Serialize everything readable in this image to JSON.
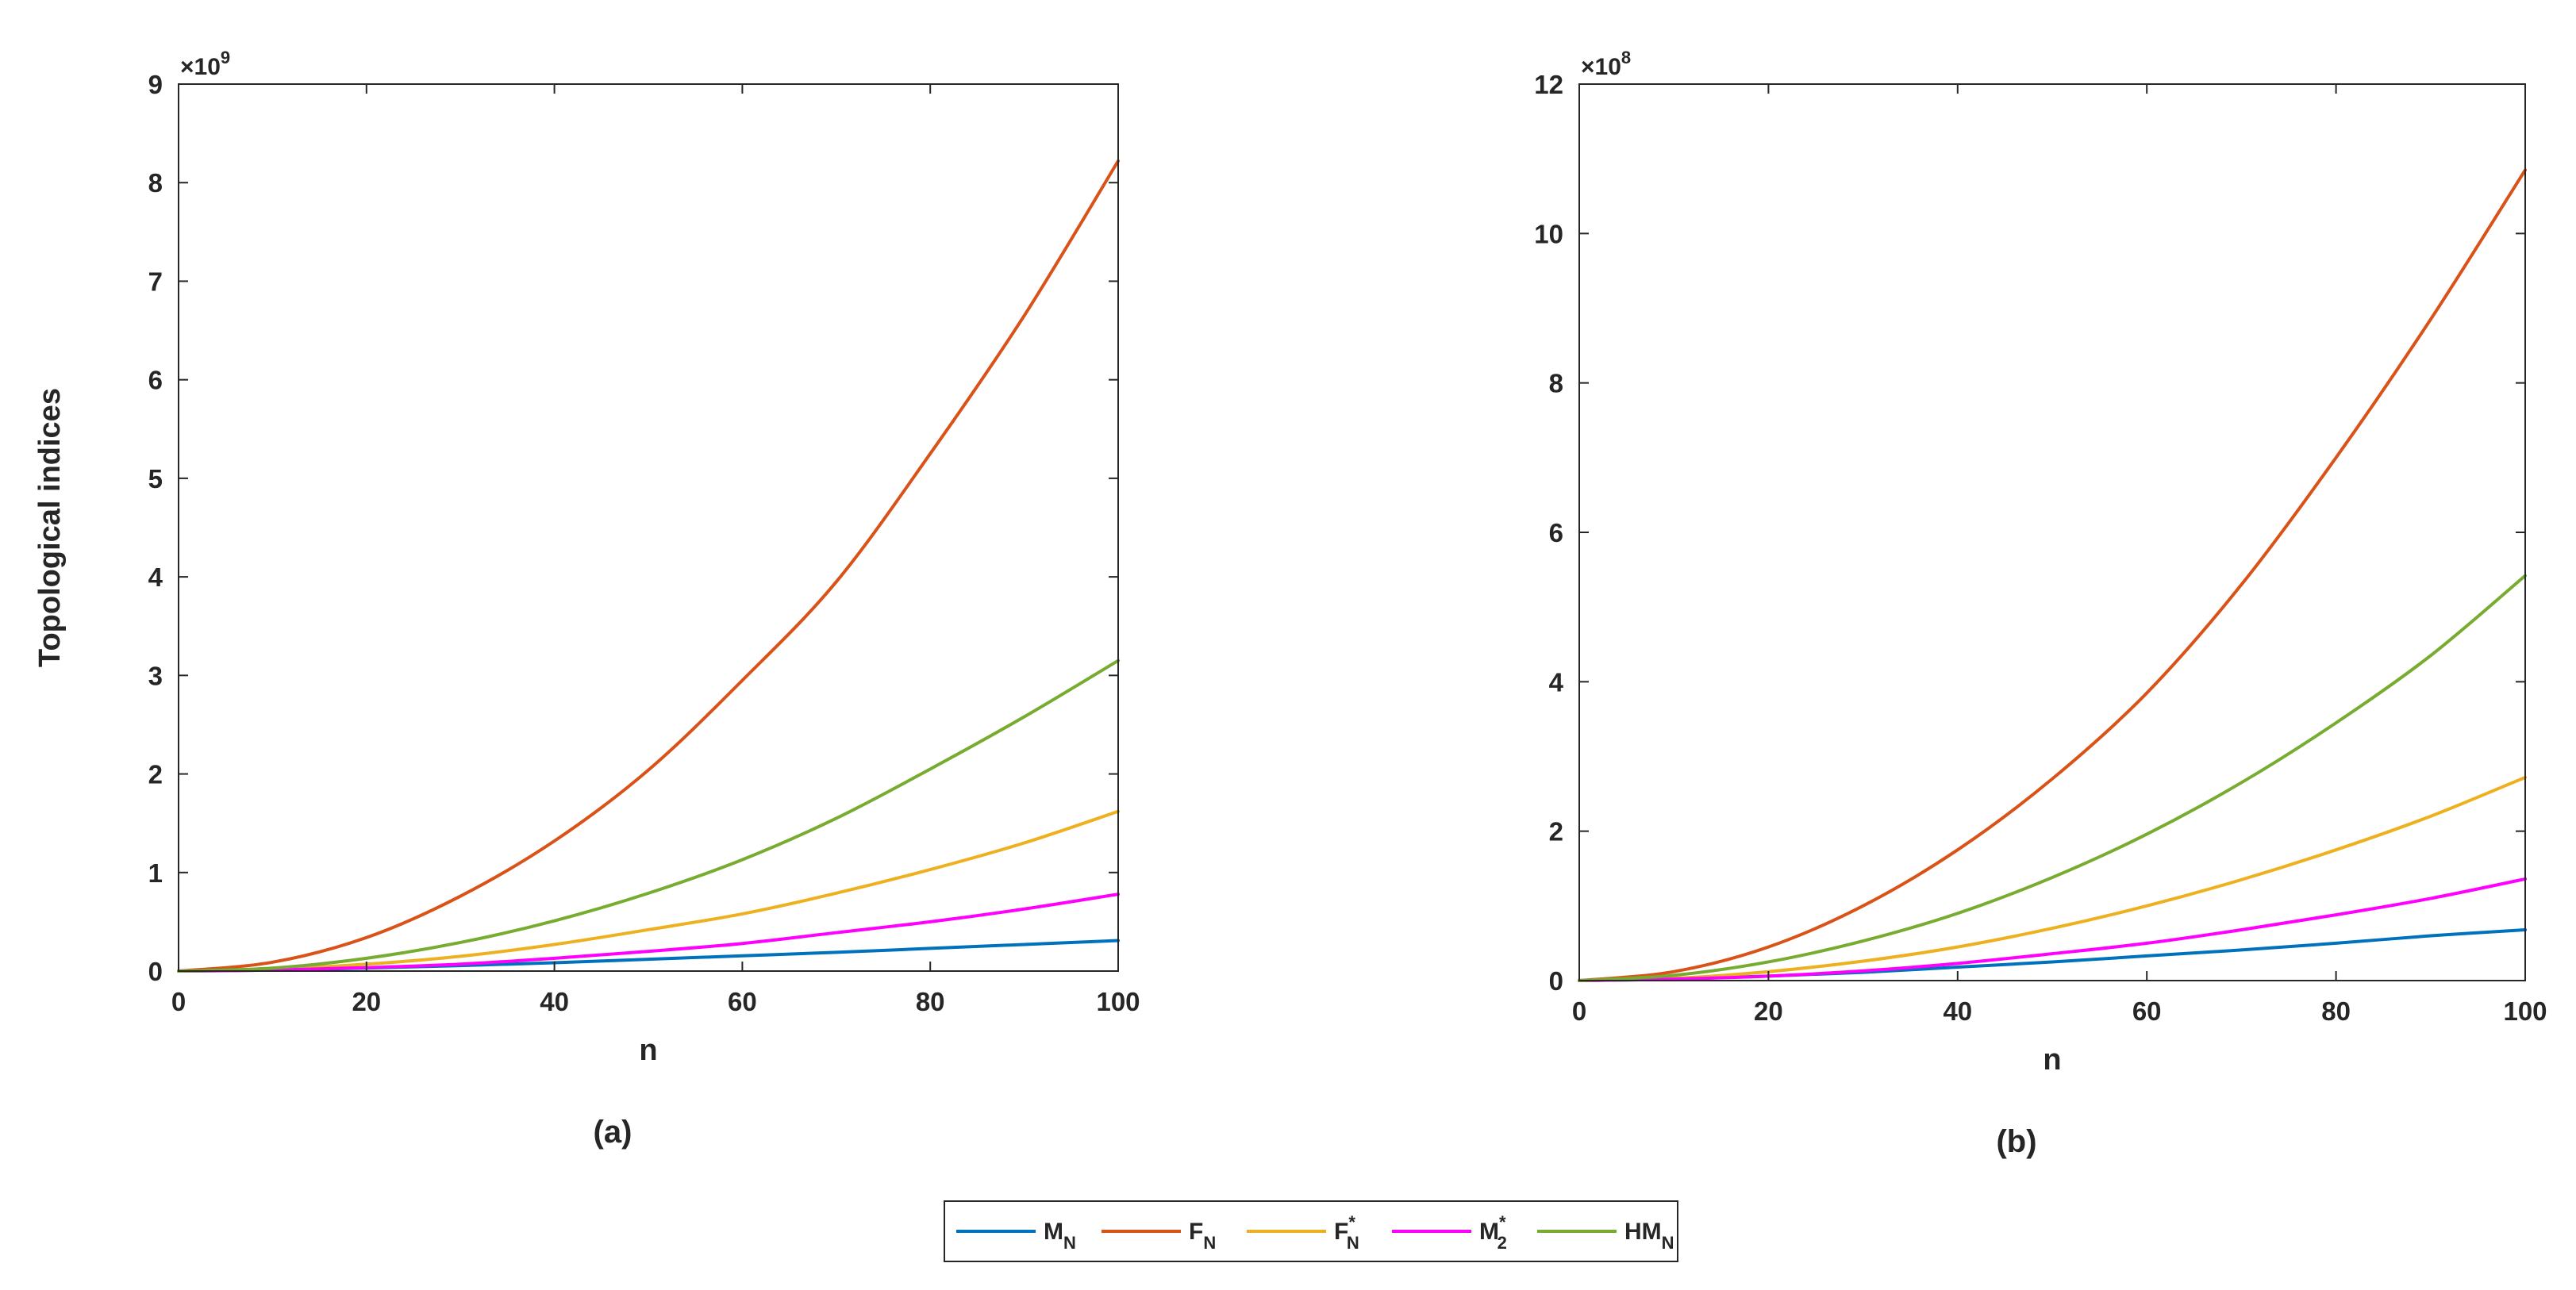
{
  "chart_data": [
    {
      "type": "line",
      "panel_label": "(a)",
      "xlabel": "n",
      "ylabel": "Topological indices",
      "exponent_base": "×10",
      "exponent_power": "9",
      "xlim": [
        0,
        100
      ],
      "ylim": [
        0,
        9
      ],
      "xticks": [
        "0",
        "20",
        "40",
        "60",
        "80",
        "100"
      ],
      "yticks": [
        "0",
        "1",
        "2",
        "3",
        "4",
        "5",
        "6",
        "7",
        "8",
        "9"
      ],
      "x": [
        0,
        10,
        20,
        30,
        40,
        50,
        60,
        70,
        80,
        90,
        100
      ],
      "series": [
        {
          "name": "M_N",
          "values": [
            0,
            0.01,
            0.03,
            0.055,
            0.085,
            0.12,
            0.155,
            0.19,
            0.23,
            0.27,
            0.31
          ]
        },
        {
          "name": "F_N",
          "values": [
            0,
            0.09,
            0.34,
            0.76,
            1.32,
            2.04,
            2.95,
            3.95,
            5.25,
            6.65,
            8.22
          ]
        },
        {
          "name": "F*_N",
          "values": [
            0,
            0.02,
            0.07,
            0.15,
            0.27,
            0.42,
            0.58,
            0.79,
            1.03,
            1.3,
            1.62
          ]
        },
        {
          "name": "M*_2",
          "values": [
            0,
            0.01,
            0.035,
            0.07,
            0.13,
            0.2,
            0.28,
            0.39,
            0.5,
            0.63,
            0.78
          ]
        },
        {
          "name": "HM_N",
          "values": [
            0,
            0.03,
            0.13,
            0.29,
            0.51,
            0.79,
            1.13,
            1.55,
            2.05,
            2.58,
            3.15
          ]
        }
      ]
    },
    {
      "type": "line",
      "panel_label": "(b)",
      "xlabel": "n",
      "ylabel": "",
      "exponent_base": "×10",
      "exponent_power": "8",
      "xlim": [
        0,
        100
      ],
      "ylim": [
        0,
        12
      ],
      "xticks": [
        "0",
        "20",
        "40",
        "60",
        "80",
        "100"
      ],
      "yticks": [
        "0",
        "2",
        "4",
        "6",
        "8",
        "10",
        "12"
      ],
      "x": [
        0,
        10,
        20,
        30,
        40,
        50,
        60,
        70,
        80,
        90,
        100
      ],
      "series": [
        {
          "name": "M_N",
          "values": [
            0,
            0.02,
            0.06,
            0.11,
            0.18,
            0.25,
            0.33,
            0.41,
            0.5,
            0.6,
            0.68
          ]
        },
        {
          "name": "F_N",
          "values": [
            0,
            0.12,
            0.45,
            1.0,
            1.75,
            2.7,
            3.85,
            5.3,
            7.0,
            8.85,
            10.85
          ]
        },
        {
          "name": "F*_N",
          "values": [
            0,
            0.03,
            0.12,
            0.26,
            0.45,
            0.7,
            1.0,
            1.35,
            1.75,
            2.2,
            2.72
          ]
        },
        {
          "name": "M*_2",
          "values": [
            0,
            0.02,
            0.06,
            0.13,
            0.23,
            0.36,
            0.5,
            0.68,
            0.88,
            1.1,
            1.36
          ]
        },
        {
          "name": "HM_N",
          "values": [
            0,
            0.07,
            0.25,
            0.53,
            0.9,
            1.38,
            1.96,
            2.65,
            3.45,
            4.35,
            5.42
          ]
        }
      ]
    }
  ],
  "legend": {
    "placement": "bottom-center",
    "items": [
      {
        "key": "M_N",
        "base": "M",
        "sup": "",
        "sub": "N",
        "color": "#0072BD"
      },
      {
        "key": "F_N",
        "base": "F",
        "sup": "",
        "sub": "N",
        "color": "#D95319"
      },
      {
        "key": "F*_N",
        "base": "F",
        "sup": "*",
        "sub": "N",
        "color": "#EDB120"
      },
      {
        "key": "M*_2",
        "base": "M",
        "sup": "*",
        "sub": "2",
        "color": "#FF00FF"
      },
      {
        "key": "HM_N",
        "base": "HM",
        "sup": "",
        "sub": "N",
        "color": "#77AC30"
      }
    ]
  }
}
